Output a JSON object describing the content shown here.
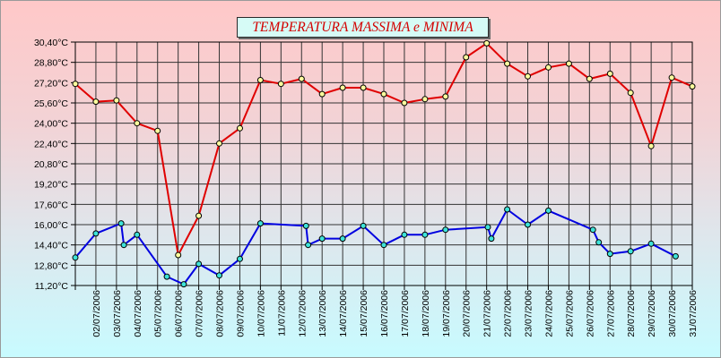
{
  "chart_data": {
    "type": "line",
    "title": "TEMPERATURA MASSIMA e MINIMA",
    "xlabel": "",
    "ylabel": "",
    "ylim": [
      11.2,
      30.4
    ],
    "y_ticks": [
      "30,40°C",
      "28,80°C",
      "27,20°C",
      "25,60°C",
      "24,00°C",
      "22,40°C",
      "20,80°C",
      "19,20°C",
      "17,60°C",
      "16,00°C",
      "14,40°C",
      "12,80°C",
      "11,20°C"
    ],
    "x_ticks": [
      "02/07/2006",
      "03/07/2006",
      "04/07/2006",
      "05/07/2006",
      "06/07/2006",
      "07/07/2006",
      "08/07/2006",
      "09/07/2006",
      "10/07/2006",
      "11/07/2006",
      "12/07/2006",
      "13/07/2006",
      "14/07/2006",
      "15/07/2006",
      "16/07/2006",
      "17/07/2006",
      "18/07/2006",
      "19/07/2006",
      "20/07/2006",
      "21/07/2006",
      "22/07/2006",
      "23/07/2006",
      "24/07/2006",
      "25/07/2006",
      "26/07/2006",
      "27/07/2006",
      "28/07/2006",
      "29/07/2006",
      "30/07/2006",
      "31/07/2006"
    ],
    "x_range": [
      "01/07/2006",
      "31/07/2006"
    ],
    "grid": true,
    "legend": "none",
    "series": [
      {
        "color": "#e00000",
        "points": [
          [
            "01/07/2006",
            27.1
          ],
          [
            "02/07/2006",
            25.7
          ],
          [
            "03/07/2006",
            25.8
          ],
          [
            "04/07/2006",
            24.0
          ],
          [
            "05/07/2006",
            23.4
          ],
          [
            "06/07/2006",
            13.6
          ],
          [
            "07/07/2006",
            16.7
          ],
          [
            "08/07/2006",
            22.4
          ],
          [
            "09/07/2006",
            23.6
          ],
          [
            "10/07/2006",
            27.4
          ],
          [
            "11/07/2006",
            27.1
          ],
          [
            "12/07/2006",
            27.5
          ],
          [
            "13/07/2006",
            26.3
          ],
          [
            "14/07/2006",
            26.8
          ],
          [
            "15/07/2006",
            26.8
          ],
          [
            "16/07/2006",
            26.3
          ],
          [
            "17/07/2006",
            25.6
          ],
          [
            "18/07/2006",
            25.9
          ],
          [
            "19/07/2006",
            26.1
          ],
          [
            "20/07/2006",
            29.2
          ],
          [
            "21/07/2006",
            30.3
          ],
          [
            "22/07/2006",
            28.7
          ],
          [
            "23/07/2006",
            27.7
          ],
          [
            "24/07/2006",
            28.4
          ],
          [
            "25/07/2006",
            28.7
          ],
          [
            "26/07/2006",
            27.5
          ],
          [
            "27/07/2006",
            27.9
          ],
          [
            "28/07/2006",
            26.4
          ],
          [
            "29/07/2006",
            22.2
          ],
          [
            "30/07/2006",
            27.6
          ],
          [
            "31/07/2006",
            26.9
          ]
        ]
      },
      {
        "color": "#0000e0",
        "points": [
          [
            "01/07/2006",
            13.4
          ],
          [
            "02/07/2006",
            15.3
          ],
          [
            "03/07/2006",
            16.1
          ],
          [
            "03/07/2006",
            14.4
          ],
          [
            "04/07/2006",
            15.2
          ],
          [
            "05/07/2006",
            11.9
          ],
          [
            "06/07/2006",
            11.3
          ],
          [
            "07/07/2006",
            12.9
          ],
          [
            "08/07/2006",
            12.0
          ],
          [
            "09/07/2006",
            13.3
          ],
          [
            "10/07/2006",
            16.1
          ],
          [
            "12/07/2006",
            15.9
          ],
          [
            "12/07/2006",
            14.4
          ],
          [
            "13/07/2006",
            14.9
          ],
          [
            "14/07/2006",
            14.9
          ],
          [
            "15/07/2006",
            15.9
          ],
          [
            "16/07/2006",
            14.4
          ],
          [
            "17/07/2006",
            15.2
          ],
          [
            "18/07/2006",
            15.2
          ],
          [
            "19/07/2006",
            15.6
          ],
          [
            "21/07/2006",
            15.8
          ],
          [
            "21/07/2006",
            14.9
          ],
          [
            "22/07/2006",
            17.2
          ],
          [
            "23/07/2006",
            16.0
          ],
          [
            "24/07/2006",
            17.1
          ],
          [
            "26/07/2006",
            15.6
          ],
          [
            "26/07/2006",
            14.6
          ],
          [
            "27/07/2006",
            13.7
          ],
          [
            "28/07/2006",
            13.9
          ],
          [
            "29/07/2006",
            14.5
          ],
          [
            "30/07/2006",
            13.5
          ]
        ]
      }
    ]
  }
}
